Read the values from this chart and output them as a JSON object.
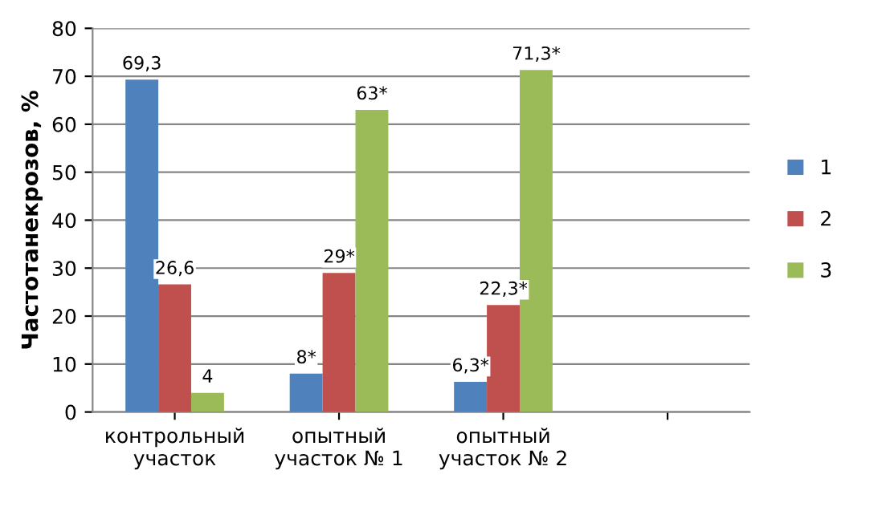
{
  "chart_data": {
    "type": "bar",
    "ylabel": "Частотанекрозов, %",
    "categories": [
      "контрольный\nучасток",
      "опытный\nучасток № 1",
      "опытный\nучасток № 2",
      null
    ],
    "series": [
      {
        "name": "1",
        "color": "#4f81bd",
        "values": [
          69.3,
          8,
          6.3,
          null
        ],
        "value_labels": [
          "69,3",
          "8*",
          "6,3*",
          null
        ]
      },
      {
        "name": "2",
        "color": "#c0504d",
        "values": [
          26.6,
          29,
          22.3,
          null
        ],
        "value_labels": [
          "26,6",
          "29*",
          "22,3*",
          null
        ]
      },
      {
        "name": "3",
        "color": "#9bbb59",
        "values": [
          4,
          63,
          71.3,
          null
        ],
        "value_labels": [
          "4",
          "63*",
          "71,3*",
          null
        ]
      }
    ],
    "ylim": [
      0,
      80
    ],
    "yticks": [
      0,
      10,
      20,
      30,
      40,
      50,
      60,
      70,
      80
    ],
    "grid": "y",
    "legend": "right"
  }
}
